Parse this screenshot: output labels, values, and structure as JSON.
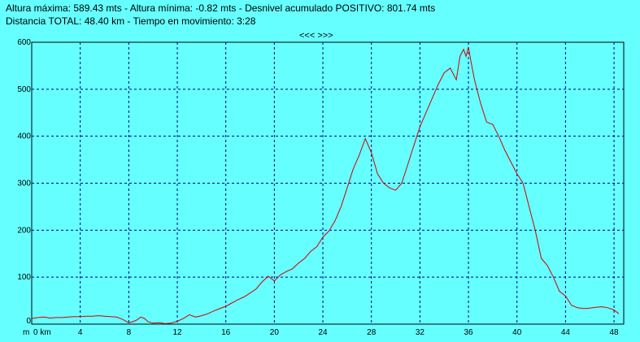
{
  "header": {
    "line1": "Altura máxima: 589.43 mts - Altura mínima: -0.82 mts - Desnivel acumulado POSITIVO: 801.74 mts",
    "line2": "Distancia TOTAL: 48.40 km - Tiempo en movimiento: 3:28"
  },
  "nav_label": "<<< >>>",
  "colors": {
    "background": "#66ffff",
    "grid": "#000080",
    "line": "#d00000",
    "axis": "#000000"
  },
  "chart_data": {
    "type": "line",
    "title": "",
    "xlabel": "km",
    "ylabel": "m",
    "xlim": [
      0,
      48.4
    ],
    "ylim": [
      0,
      600
    ],
    "grid": true,
    "x_ticks": [
      0,
      4,
      8,
      12,
      16,
      20,
      24,
      28,
      32,
      36,
      40,
      44,
      48
    ],
    "x_tick_labels": [
      "0 km",
      "4",
      "8",
      "12",
      "16",
      "20",
      "24",
      "28",
      "32",
      "36",
      "40",
      "44",
      "48"
    ],
    "y_ticks": [
      100,
      200,
      300,
      400,
      500,
      600
    ],
    "y_tick_labels": [
      "100",
      "200",
      "300",
      "400",
      "500",
      "600"
    ],
    "y_origin_label": "0",
    "x_origin_unit": "m",
    "series": [
      {
        "x": [
          0,
          0.5,
          1,
          1.5,
          2,
          2.5,
          3,
          3.5,
          4,
          4.5,
          5,
          5.5,
          6,
          6.5,
          7,
          7.5,
          8,
          8.3,
          8.6,
          9,
          9.3,
          9.6,
          10,
          10.5,
          11,
          11.5,
          12,
          12.5,
          13,
          13.5,
          14,
          14.5,
          15,
          15.5,
          16,
          16.5,
          17,
          17.5,
          18,
          18.5,
          19,
          19.5,
          20,
          20.5,
          21,
          21.5,
          22,
          22.5,
          23,
          23.5,
          24,
          24.5,
          25,
          25.5,
          26,
          26.5,
          27,
          27.5,
          28,
          28.5,
          29,
          29.5,
          30,
          30.5,
          31,
          31.5,
          32,
          32.5,
          33,
          33.5,
          34,
          34.5,
          35,
          35.3,
          35.6,
          35.8,
          36,
          36.2,
          36.5,
          37,
          37.5,
          38,
          38.5,
          39,
          39.5,
          40,
          40.5,
          41,
          41.5,
          42,
          42.5,
          43,
          43.5,
          44,
          44.5,
          45,
          45.5,
          46,
          46.5,
          47,
          47.5,
          48,
          48.4
        ],
        "y": [
          12,
          14,
          15,
          13,
          14,
          14,
          15,
          16,
          16,
          17,
          17,
          18,
          17,
          16,
          15,
          10,
          3,
          5,
          8,
          15,
          12,
          5,
          2,
          3,
          1,
          2,
          6,
          12,
          20,
          15,
          18,
          22,
          28,
          33,
          38,
          45,
          52,
          58,
          66,
          75,
          90,
          102,
          92,
          105,
          112,
          118,
          130,
          140,
          155,
          165,
          185,
          198,
          220,
          250,
          290,
          330,
          360,
          395,
          365,
          320,
          300,
          290,
          285,
          300,
          340,
          380,
          420,
          450,
          480,
          510,
          535,
          545,
          520,
          570,
          585,
          570,
          590,
          560,
          520,
          470,
          430,
          425,
          400,
          370,
          345,
          320,
          300,
          250,
          200,
          140,
          125,
          100,
          70,
          60,
          40,
          35,
          33,
          34,
          36,
          37,
          35,
          30,
          22
        ]
      }
    ]
  }
}
